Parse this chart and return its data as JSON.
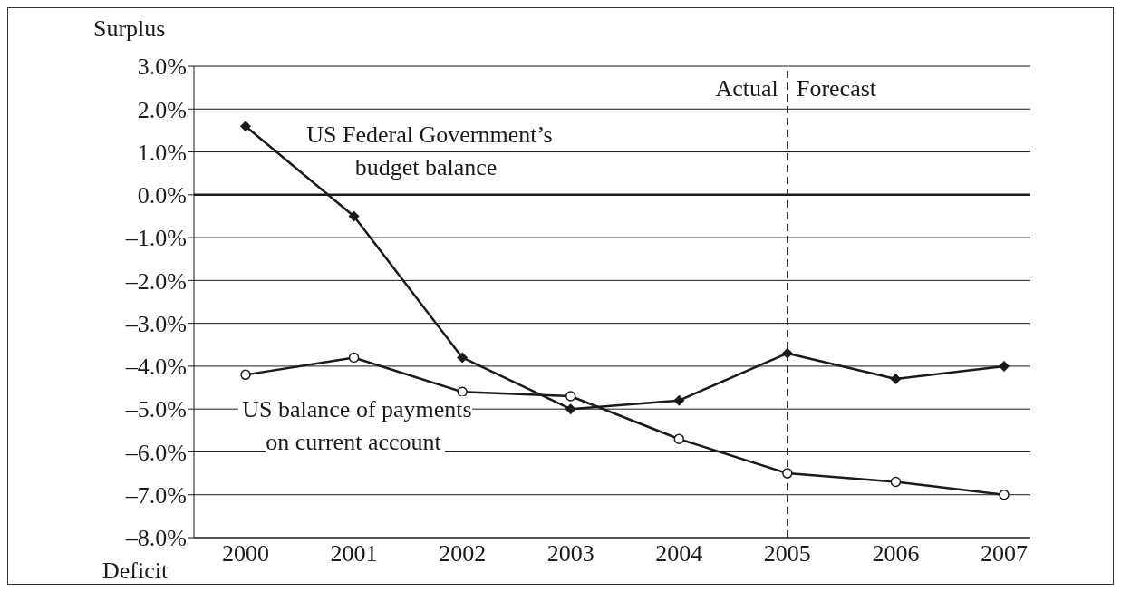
{
  "chart_data": {
    "type": "line",
    "categories": [
      "2000",
      "2001",
      "2002",
      "2003",
      "2004",
      "2005",
      "2006",
      "2007"
    ],
    "series": [
      {
        "name": "US Federal Government’s budget balance",
        "color": "#1a1a1a",
        "marker": "diamond",
        "values": [
          1.6,
          -0.5,
          -3.8,
          -5.0,
          -4.8,
          -3.7,
          -4.3,
          -4.0
        ]
      },
      {
        "name": "US balance of payments on current account",
        "color": "#1a1a1a",
        "marker": "circle",
        "values": [
          -4.2,
          -3.8,
          -4.6,
          -4.7,
          -5.7,
          -6.5,
          -6.7,
          -7.0
        ]
      }
    ],
    "ylim": [
      -8,
      3
    ],
    "yticks": [
      {
        "value": 3,
        "label": "3.0%"
      },
      {
        "value": 2,
        "label": "2.0%"
      },
      {
        "value": 1,
        "label": "1.0%"
      },
      {
        "value": 0,
        "label": "0.0%"
      },
      {
        "value": -1,
        "label": "–1.0%"
      },
      {
        "value": -2,
        "label": "–2.0%"
      },
      {
        "value": -3,
        "label": "–3.0%"
      },
      {
        "value": -4,
        "label": "–4.0%"
      },
      {
        "value": -5,
        "label": "–5.0%"
      },
      {
        "value": -6,
        "label": "–6.0%"
      },
      {
        "value": -7,
        "label": "–7.0%"
      },
      {
        "value": -8,
        "label": "–8.0%"
      }
    ],
    "grid": "y",
    "ref_lines": [
      {
        "axis": "y",
        "value": 0,
        "color": "#1a1a1a",
        "line_style": "solid"
      },
      {
        "axis": "x",
        "value": "2005",
        "color": "#1a1a1a",
        "line_style": "dashed"
      }
    ],
    "annotations": [
      {
        "text": "Actual",
        "x": "2005",
        "y": 2.5
      },
      {
        "text": "Forecast",
        "x": "2005",
        "y": 2.5
      },
      "Surplus",
      "Deficit"
    ]
  }
}
